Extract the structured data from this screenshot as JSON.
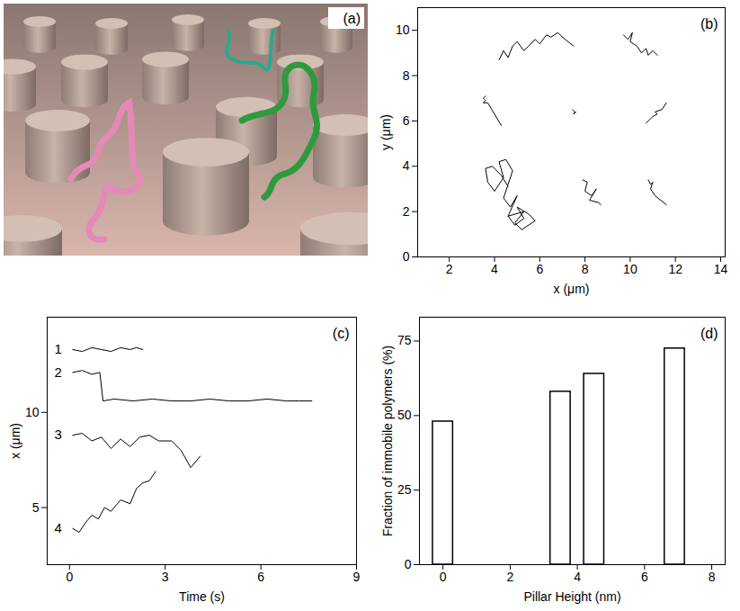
{
  "chart_data": [
    {
      "type": "image",
      "title": "(a)"
    },
    {
      "type": "line",
      "title": "(b)",
      "x_label": "x (μm)",
      "y_label": "y (μm)",
      "xlim": [
        0.6,
        14.2
      ],
      "ylim": [
        0,
        11
      ],
      "xticks": [
        2,
        4,
        6,
        8,
        10,
        12,
        14
      ],
      "yticks": [
        0,
        2,
        4,
        6,
        8,
        10
      ],
      "color": "#000000",
      "series": [
        {
          "x": [
            4.2,
            4.4,
            4.6,
            4.8,
            5.0,
            5.3,
            5.5,
            5.8,
            6.0,
            6.3,
            6.5,
            6.8,
            7.0,
            7.5
          ],
          "values": [
            8.7,
            9.1,
            8.8,
            9.3,
            9.5,
            9.1,
            9.3,
            9.6,
            9.4,
            9.8,
            9.7,
            9.9,
            9.7,
            9.3
          ]
        },
        {
          "x": [
            9.7,
            9.9,
            10.1,
            10.0,
            10.3,
            10.5,
            10.7,
            10.8,
            11.0,
            11.2
          ],
          "values": [
            9.8,
            9.6,
            9.9,
            9.5,
            9.3,
            9.0,
            9.2,
            8.9,
            9.1,
            8.9
          ]
        },
        {
          "x": [
            3.6,
            3.5,
            3.6,
            3.5,
            3.7,
            4.3
          ],
          "values": [
            7.1,
            7.0,
            6.9,
            6.8,
            6.8,
            5.8
          ]
        },
        {
          "x": [
            7.45,
            7.55,
            7.5,
            7.6
          ],
          "values": [
            6.5,
            6.4,
            6.3,
            6.4
          ]
        },
        {
          "x": [
            10.7,
            10.9,
            11.0,
            11.2,
            11.1,
            11.4,
            11.6
          ],
          "values": [
            5.9,
            6.1,
            6.2,
            6.3,
            6.4,
            6.5,
            6.8
          ]
        },
        {
          "x": [
            4.6,
            4.3,
            3.9,
            3.6,
            3.7,
            4.0,
            4.4,
            4.2,
            4.5,
            4.8,
            4.4,
            4.7,
            5.0,
            4.6,
            4.9,
            5.3,
            5.0,
            5.5,
            5.8,
            5.2,
            4.9,
            5.3,
            4.6
          ],
          "values": [
            3.1,
            3.6,
            4.0,
            3.9,
            3.3,
            2.9,
            3.5,
            4.2,
            4.3,
            3.8,
            2.6,
            2.2,
            2.7,
            1.8,
            1.4,
            1.7,
            2.2,
            1.9,
            1.6,
            1.2,
            1.5,
            2.0,
            1.8
          ]
        },
        {
          "x": [
            7.9,
            8.1,
            8.0,
            8.3,
            8.5,
            8.2,
            8.6,
            8.7
          ],
          "values": [
            3.4,
            3.3,
            2.9,
            2.7,
            3.0,
            2.5,
            2.4,
            2.3
          ]
        },
        {
          "x": [
            10.8,
            10.9,
            11.0,
            10.9,
            11.1,
            11.6
          ],
          "values": [
            3.4,
            3.2,
            3.3,
            3.0,
            2.7,
            2.3
          ]
        }
      ]
    },
    {
      "type": "line",
      "title": "(c)",
      "x_label": "Time (s)",
      "y_label": "x (μm)",
      "xlim": [
        -0.7,
        9
      ],
      "ylim": [
        2,
        15
      ],
      "xticks": [
        0,
        3,
        6,
        9
      ],
      "yticks": [
        5,
        10
      ],
      "series": [
        {
          "name": "1",
          "color": "#000000",
          "x": [
            0.1,
            0.4,
            0.7,
            1.0,
            1.3,
            1.6,
            1.9,
            2.1,
            2.3
          ],
          "values": [
            13.3,
            13.2,
            13.4,
            13.3,
            13.2,
            13.4,
            13.3,
            13.4,
            13.3
          ]
        },
        {
          "name": "2",
          "color": "#000000",
          "x": [
            0.1,
            0.4,
            0.7,
            0.95,
            1.05,
            1.4,
            2.0,
            2.6,
            3.2,
            3.8,
            4.4,
            5.0,
            5.6,
            6.2,
            6.8,
            7.2,
            7.6
          ],
          "values": [
            12.1,
            12.2,
            12.0,
            12.1,
            10.6,
            10.7,
            10.6,
            10.7,
            10.6,
            10.6,
            10.7,
            10.6,
            10.6,
            10.7,
            10.6,
            10.6,
            10.6
          ]
        },
        {
          "name": "3",
          "color": "#000000",
          "x": [
            0.1,
            0.4,
            0.7,
            1.0,
            1.3,
            1.6,
            1.9,
            2.2,
            2.5,
            2.8,
            3.2,
            3.5,
            3.8,
            4.1
          ],
          "values": [
            8.8,
            8.9,
            8.5,
            8.7,
            8.1,
            8.6,
            8.2,
            8.7,
            8.8,
            8.5,
            8.5,
            8.0,
            7.1,
            7.7
          ]
        },
        {
          "name": "4",
          "color": "#000000",
          "x": [
            0.1,
            0.3,
            0.5,
            0.7,
            0.9,
            1.1,
            1.3,
            1.6,
            1.9,
            2.1,
            2.3,
            2.5,
            2.7
          ],
          "values": [
            3.9,
            3.7,
            4.2,
            4.6,
            4.4,
            5.0,
            4.8,
            5.4,
            5.2,
            6.0,
            6.3,
            6.4,
            6.9
          ]
        }
      ]
    },
    {
      "type": "bar",
      "title": "(d)",
      "x_label": "Pillar Height (nm)",
      "y_label": "Fraction of immobile polymers (%)",
      "x": [
        0,
        3.5,
        4.5,
        6.9
      ],
      "values": [
        48,
        58,
        64,
        72.5
      ],
      "xlim": [
        -0.7,
        8.4
      ],
      "ylim": [
        0,
        83
      ],
      "xticks": [
        0,
        2,
        4,
        6,
        8
      ],
      "yticks": [
        0,
        25,
        50,
        75
      ],
      "color": "#ffffff"
    }
  ]
}
